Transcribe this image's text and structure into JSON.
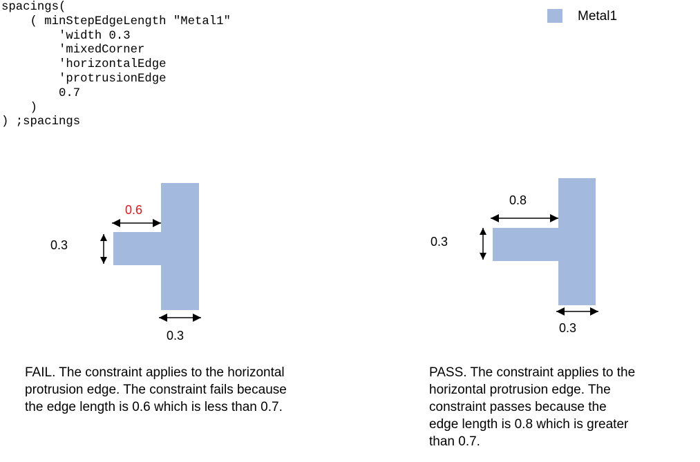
{
  "code": {
    "lines": [
      "spacings(",
      "    ( minStepEdgeLength \"Metal1\"",
      "        'width 0.3",
      "        'mixedCorner",
      "        'horizontalEdge",
      "        'protrusionEdge",
      "        0.7",
      "    )",
      ") ;spacings"
    ]
  },
  "legend": {
    "label": "Metal1",
    "color": "#a4b9de"
  },
  "fail_example": {
    "edge_label": "0.6",
    "edge_label_color": "#e8141b",
    "width_label": "0.3",
    "bottom_label": "0.3",
    "caption": "FAIL. The constraint applies to the horizontal protrusion edge. The constraint fails because the edge length is 0.6 which is less than 0.7."
  },
  "pass_example": {
    "edge_label": "0.8",
    "width_label": "0.3",
    "bottom_label": "0.3",
    "caption": "PASS. The constraint applies to the horizontal protrusion edge. The constraint passes because the edge length is 0.8 which is greater than 0.7."
  }
}
